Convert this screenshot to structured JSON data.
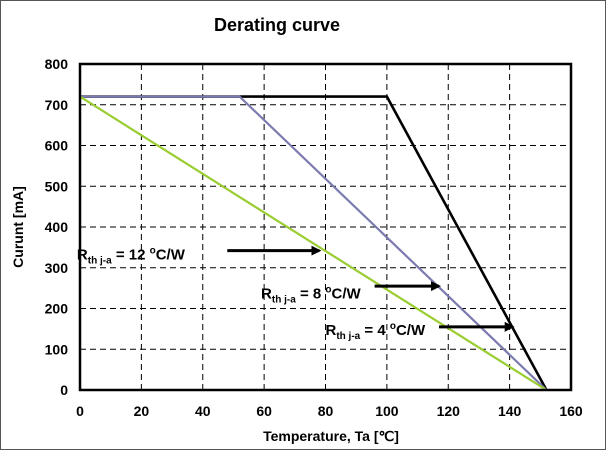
{
  "chart_data": {
    "type": "line",
    "title": "Derating curve",
    "xlabel": "Temperature, Ta [℃]",
    "ylabel": "Curunt [mA]",
    "xlim": [
      0,
      160
    ],
    "ylim": [
      0,
      800
    ],
    "xticks": [
      0,
      20,
      40,
      60,
      80,
      100,
      120,
      140,
      160
    ],
    "yticks": [
      0,
      100,
      200,
      300,
      400,
      500,
      600,
      700,
      800
    ],
    "grid": true,
    "series": [
      {
        "id": "r4",
        "color": "#000000",
        "points": [
          [
            0,
            720
          ],
          [
            100,
            720
          ],
          [
            152,
            0
          ]
        ]
      },
      {
        "id": "r8",
        "color": "#7b7bb0",
        "points": [
          [
            0,
            720
          ],
          [
            52,
            720
          ],
          [
            152,
            0
          ]
        ]
      },
      {
        "id": "r12",
        "color": "#9acd32",
        "points": [
          [
            0,
            720
          ],
          [
            152,
            0
          ]
        ]
      }
    ],
    "annotations": [
      {
        "id": "r12",
        "prefix": "R",
        "sub": "th j-a",
        "mid": " = 12 ",
        "sup": "o",
        "suffix": "C/W",
        "text_at": [
          -1,
          320
        ],
        "arrow_from": [
          48,
          342
        ],
        "arrow_to": [
          78,
          342
        ]
      },
      {
        "id": "r8",
        "prefix": "R",
        "sub": "th j-a",
        "mid": " = 8 ",
        "sup": "o",
        "suffix": "C/W",
        "text_at": [
          59,
          225
        ],
        "arrow_from": [
          96,
          255
        ],
        "arrow_to": [
          117,
          255
        ]
      },
      {
        "id": "r4",
        "prefix": "R",
        "sub": "th j-a",
        "mid": " = 4 ",
        "sup": "o",
        "suffix": "C/W",
        "text_at": [
          80,
          135
        ],
        "arrow_from": [
          117,
          155
        ],
        "arrow_to": [
          141,
          155
        ]
      }
    ]
  }
}
